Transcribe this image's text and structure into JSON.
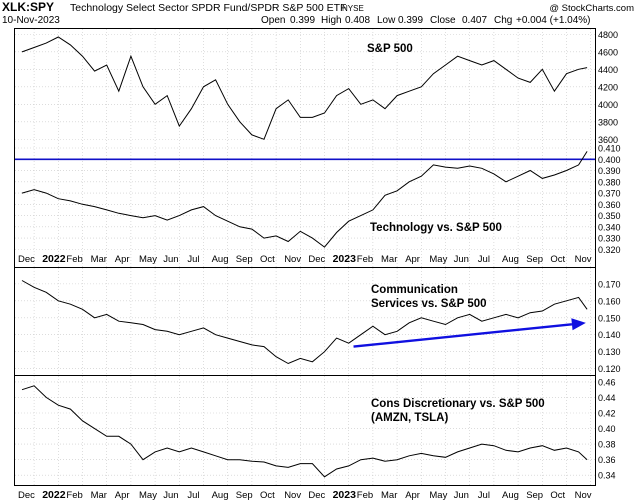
{
  "header": {
    "symbol": "XLK:SPY",
    "description": "Technology Select Sector SPDR Fund/SPDR S&P 500 ETF",
    "exchange": "NYSE",
    "date": "10-Nov-2023",
    "open_label": "Open",
    "open": "0.399",
    "high_label": "High",
    "high": "0.408",
    "low_label": "Low",
    "low": "0.399",
    "close_label": "Close",
    "close": "0.407",
    "chg_label": "Chg",
    "chg": "+0.004 (+1.04%)",
    "watermark": "@ StockCharts.com"
  },
  "colors": {
    "line": "#000000",
    "grid": "#c8c8c8",
    "hline": "#1010c8",
    "arrow": "#1010e0",
    "text": "#000000"
  },
  "x_axis": {
    "months": [
      "Dec",
      "2022",
      "Feb",
      "Mar",
      "Apr",
      "May",
      "Jun",
      "Jul",
      "Aug",
      "Sep",
      "Oct",
      "Nov",
      "Dec",
      "2023",
      "Feb",
      "Mar",
      "Apr",
      "May",
      "Jun",
      "Jul",
      "Aug",
      "Sep",
      "Oct",
      "Nov"
    ],
    "bold": [
      "2022",
      "2023"
    ]
  },
  "chart_data": [
    {
      "type": "line",
      "title": "S&P 500",
      "ylim": [
        3500,
        4850
      ],
      "yticks": [
        3600,
        3800,
        4000,
        4200,
        4400,
        4600,
        4800
      ],
      "x": [
        0,
        0.5,
        1,
        1.5,
        2,
        2.5,
        3,
        3.5,
        4,
        4.5,
        5,
        5.5,
        6,
        6.5,
        7,
        7.5,
        8,
        8.5,
        9,
        9.5,
        10,
        10.5,
        11,
        11.5,
        12,
        12.5,
        13,
        13.5,
        14,
        14.5,
        15,
        15.5,
        16,
        16.5,
        17,
        17.5,
        18,
        18.5,
        19,
        19.5,
        20,
        20.5,
        21,
        21.5,
        22,
        22.5,
        23,
        23.35
      ],
      "values": [
        4600,
        4650,
        4700,
        4770,
        4680,
        4550,
        4380,
        4450,
        4150,
        4550,
        4200,
        4000,
        4100,
        3750,
        3950,
        4200,
        4280,
        4000,
        3800,
        3650,
        3600,
        3950,
        4050,
        3850,
        3850,
        3900,
        4100,
        4180,
        4000,
        4050,
        3950,
        4100,
        4150,
        4200,
        4350,
        4450,
        4550,
        4500,
        4450,
        4500,
        4400,
        4300,
        4250,
        4400,
        4150,
        4350,
        4400,
        4420
      ],
      "annotation": "S&P 500"
    },
    {
      "type": "line",
      "title": "Technology vs. S&P 500",
      "ylim": [
        0.315,
        0.41
      ],
      "yticks": [
        0.32,
        0.33,
        0.34,
        0.35,
        0.36,
        0.37,
        0.38,
        0.39,
        0.4,
        0.41
      ],
      "ytick_labels": [
        "0.320",
        "0.330",
        "0.340",
        "0.350",
        "0.360",
        "0.370",
        "0.380",
        "0.390",
        "0.400",
        "0.410"
      ],
      "hline": 0.4,
      "x": [
        0,
        0.5,
        1,
        1.5,
        2,
        2.5,
        3,
        3.5,
        4,
        4.5,
        5,
        5.5,
        6,
        6.5,
        7,
        7.5,
        8,
        8.5,
        9,
        9.5,
        10,
        10.5,
        11,
        11.5,
        12,
        12.5,
        13,
        13.5,
        14,
        14.5,
        15,
        15.5,
        16,
        16.5,
        17,
        17.5,
        18,
        18.5,
        19,
        19.5,
        20,
        20.5,
        21,
        21.5,
        22,
        22.5,
        23,
        23.35
      ],
      "values": [
        0.37,
        0.373,
        0.37,
        0.365,
        0.363,
        0.36,
        0.358,
        0.355,
        0.352,
        0.35,
        0.348,
        0.35,
        0.346,
        0.35,
        0.355,
        0.358,
        0.35,
        0.345,
        0.34,
        0.338,
        0.33,
        0.332,
        0.327,
        0.336,
        0.33,
        0.322,
        0.335,
        0.345,
        0.35,
        0.355,
        0.368,
        0.372,
        0.38,
        0.385,
        0.395,
        0.393,
        0.392,
        0.394,
        0.392,
        0.387,
        0.38,
        0.385,
        0.39,
        0.383,
        0.386,
        0.39,
        0.395,
        0.407
      ],
      "annotation": "Technology vs. S&P 500"
    },
    {
      "type": "line",
      "title": "Communication Services vs. S&P 500",
      "ylim": [
        0.118,
        0.177
      ],
      "yticks": [
        0.12,
        0.13,
        0.14,
        0.15,
        0.16,
        0.17
      ],
      "ytick_labels": [
        "0.120",
        "0.130",
        "0.140",
        "0.150",
        "0.160",
        "0.170"
      ],
      "x": [
        0,
        0.5,
        1,
        1.5,
        2,
        2.5,
        3,
        3.5,
        4,
        4.5,
        5,
        5.5,
        6,
        6.5,
        7,
        7.5,
        8,
        8.5,
        9,
        9.5,
        10,
        10.5,
        11,
        11.5,
        12,
        12.5,
        13,
        13.5,
        14,
        14.5,
        15,
        15.5,
        16,
        16.5,
        17,
        17.5,
        18,
        18.5,
        19,
        19.5,
        20,
        20.5,
        21,
        21.5,
        22,
        22.5,
        23,
        23.35
      ],
      "values": [
        0.172,
        0.168,
        0.165,
        0.16,
        0.158,
        0.155,
        0.15,
        0.152,
        0.148,
        0.147,
        0.146,
        0.143,
        0.142,
        0.14,
        0.142,
        0.144,
        0.14,
        0.138,
        0.136,
        0.134,
        0.133,
        0.127,
        0.123,
        0.126,
        0.124,
        0.13,
        0.138,
        0.135,
        0.14,
        0.145,
        0.14,
        0.142,
        0.147,
        0.15,
        0.148,
        0.146,
        0.15,
        0.152,
        0.148,
        0.15,
        0.152,
        0.15,
        0.153,
        0.154,
        0.158,
        0.16,
        0.162,
        0.155
      ],
      "annotation_lines": [
        "Communication",
        "Services vs. S&P 500"
      ],
      "arrow": {
        "from": [
          13.7,
          0.133
        ],
        "to": [
          23.3,
          0.147
        ]
      }
    },
    {
      "type": "line",
      "title": "Cons Discretionary vs. S&P 500 (AMZN, TSLA)",
      "ylim": [
        0.33,
        0.465
      ],
      "yticks": [
        0.34,
        0.36,
        0.38,
        0.4,
        0.42,
        0.44,
        0.46
      ],
      "ytick_labels": [
        "0.34",
        "0.36",
        "0.38",
        "0.40",
        "0.42",
        "0.44",
        "0.46"
      ],
      "x": [
        0,
        0.5,
        1,
        1.5,
        2,
        2.5,
        3,
        3.5,
        4,
        4.5,
        5,
        5.5,
        6,
        6.5,
        7,
        7.5,
        8,
        8.5,
        9,
        9.5,
        10,
        10.5,
        11,
        11.5,
        12,
        12.5,
        13,
        13.5,
        14,
        14.5,
        15,
        15.5,
        16,
        16.5,
        17,
        17.5,
        18,
        18.5,
        19,
        19.5,
        20,
        20.5,
        21,
        21.5,
        22,
        22.5,
        23,
        23.35
      ],
      "values": [
        0.45,
        0.455,
        0.44,
        0.43,
        0.425,
        0.41,
        0.4,
        0.39,
        0.39,
        0.38,
        0.36,
        0.37,
        0.375,
        0.37,
        0.375,
        0.37,
        0.365,
        0.36,
        0.36,
        0.358,
        0.357,
        0.352,
        0.35,
        0.355,
        0.355,
        0.338,
        0.348,
        0.352,
        0.36,
        0.362,
        0.358,
        0.36,
        0.365,
        0.368,
        0.365,
        0.363,
        0.37,
        0.375,
        0.38,
        0.378,
        0.372,
        0.37,
        0.375,
        0.378,
        0.372,
        0.375,
        0.37,
        0.36
      ],
      "annotation_lines": [
        "Cons Discretionary vs. S&P 500",
        "(AMZN, TSLA)"
      ]
    }
  ]
}
